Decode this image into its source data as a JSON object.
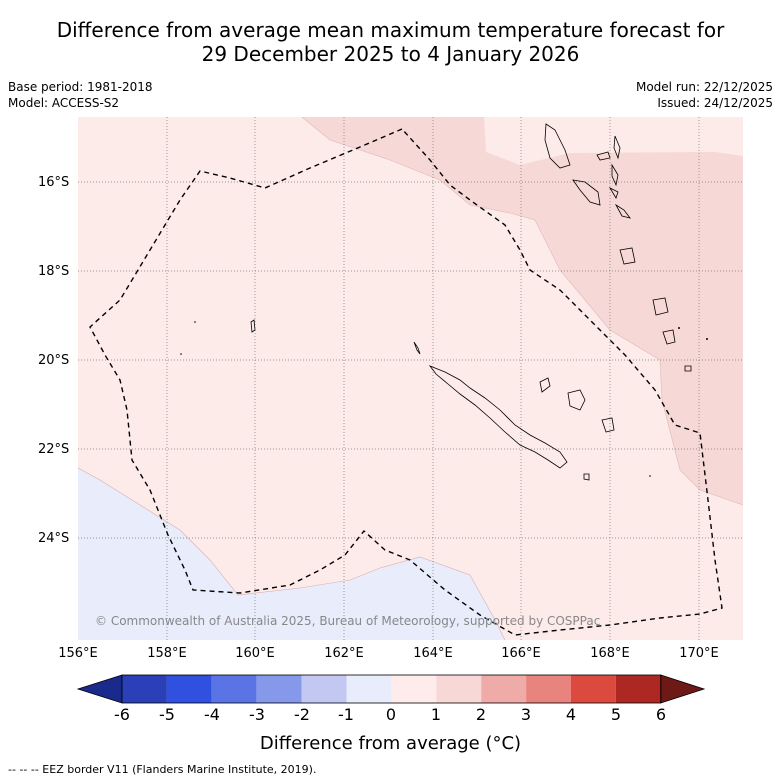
{
  "title_line1": "Difference from average mean maximum temperature forecast for",
  "title_line2": "29 December 2025 to 4 January 2026",
  "base_period": "Base period: 1981-2018",
  "model": "Model: ACCESS-S2",
  "model_run": "Model run: 22/12/2025",
  "issued": "Issued: 24/12/2025",
  "latitude_labels": [
    "16°S",
    "18°S",
    "20°S",
    "22°S",
    "24°S"
  ],
  "longitude_labels": [
    "156°E",
    "158°E",
    "160°E",
    "162°E",
    "164°E",
    "166°E",
    "168°E",
    "170°E"
  ],
  "copyright": "© Commonwealth of Australia 2025, Bureau of Meteorology, supported by COSPPac",
  "colorbar": {
    "ticks": [
      "-6",
      "-5",
      "-4",
      "-3",
      "-2",
      "-1",
      "0",
      "1",
      "2",
      "3",
      "4",
      "5",
      "6"
    ],
    "colors": [
      "#1a2a8c",
      "#2a3fb8",
      "#3050e0",
      "#5a74e6",
      "#8698ea",
      "#c2c8f2",
      "#e8ecfb",
      "#fdeceb",
      "#f7d8d6",
      "#efaba7",
      "#e8837d",
      "#dc4a3f",
      "#ad2823",
      "#6d1a16"
    ],
    "label": "Difference from average (°C)"
  },
  "legend_footnote": "--  --  -- EEZ border V11 (Flanders Marine Institute, 2019).",
  "map_colors": {
    "light_red": "#fcebe9",
    "medium_red": "#f6d8d6",
    "light_blue": "#e8ecfb"
  }
}
